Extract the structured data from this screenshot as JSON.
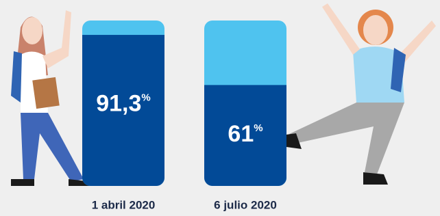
{
  "chart_data": {
    "type": "bar",
    "categories": [
      "1 abril 2020",
      "6 julio 2020"
    ],
    "values": [
      91.3,
      61
    ],
    "value_labels": [
      "91,3%",
      "61%"
    ],
    "ylim": [
      0,
      100
    ],
    "color": "#024a97",
    "track_color": "#4fc3ef"
  }
}
